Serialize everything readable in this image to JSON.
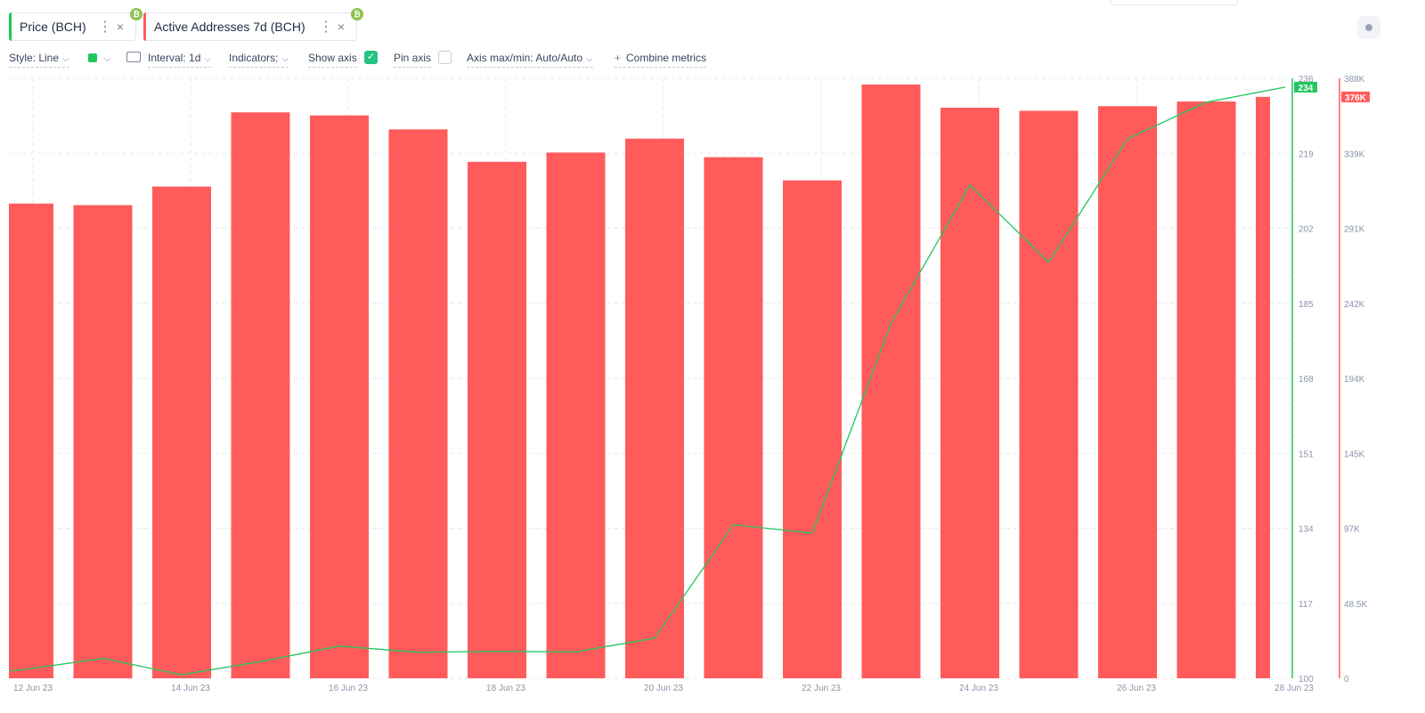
{
  "tabs": [
    {
      "label": "Price (BCH)",
      "color": "#22c55e",
      "coin_icon": "bitcoin-cash-icon"
    },
    {
      "label": "Active Addresses 7d (BCH)",
      "color": "#ff5b5b",
      "coin_icon": "bitcoin-cash-icon"
    }
  ],
  "toolbar": {
    "style_label": "Style: Line",
    "color_swatch": "#22c55e",
    "interval_label": "Interval: 1d",
    "indicators_label": "Indicators:",
    "show_axis_label": "Show axis",
    "show_axis_checked": true,
    "pin_axis_label": "Pin axis",
    "pin_axis_checked": false,
    "axis_label": "Axis max/min: Auto/Auto",
    "combine_label": "Combine metrics"
  },
  "chart_data": {
    "type": "bar",
    "title": "",
    "x_tick_labels": [
      "12 Jun 23",
      "14 Jun 23",
      "16 Jun 23",
      "18 Jun 23",
      "20 Jun 23",
      "22 Jun 23",
      "24 Jun 23",
      "26 Jun 23",
      "28 Jun 23"
    ],
    "categories": [
      "12 Jun 23",
      "13 Jun 23",
      "14 Jun 23",
      "15 Jun 23",
      "16 Jun 23",
      "17 Jun 23",
      "18 Jun 23",
      "19 Jun 23",
      "20 Jun 23",
      "21 Jun 23",
      "22 Jun 23",
      "23 Jun 23",
      "24 Jun 23",
      "25 Jun 23",
      "26 Jun 23",
      "27 Jun 23",
      "28 Jun 23"
    ],
    "series": [
      {
        "name": "Active Addresses 7d (BCH)",
        "type": "bar",
        "color": "#ff5b5b",
        "axis": "right",
        "values": [
          307000,
          306000,
          318000,
          366000,
          364000,
          355000,
          334000,
          340000,
          349000,
          337000,
          322000,
          384000,
          369000,
          367000,
          370000,
          373000,
          376000
        ]
      },
      {
        "name": "Price (BCH)",
        "type": "line",
        "color": "#22c55e",
        "axis": "left",
        "values": [
          102,
          104.5,
          100.8,
          103.8,
          107.3,
          105.9,
          106.1,
          106,
          109.1,
          134.8,
          132.9,
          180.5,
          211.8,
          194.3,
          222.3,
          230.6,
          234
        ]
      }
    ],
    "left_axis": {
      "ticks": [
        100,
        117,
        134,
        151,
        168,
        185,
        202,
        219,
        236
      ],
      "ylim": [
        100,
        236
      ],
      "current_value_label": "234",
      "color": "#22c55e"
    },
    "right_axis": {
      "ticks": [
        "0",
        "48.5K",
        "97K",
        "145K",
        "194K",
        "242K",
        "291K",
        "339K",
        "388K"
      ],
      "ylim": [
        0,
        388000
      ],
      "current_value_label": "376K",
      "color": "#ff5b5b"
    },
    "grid": true
  }
}
